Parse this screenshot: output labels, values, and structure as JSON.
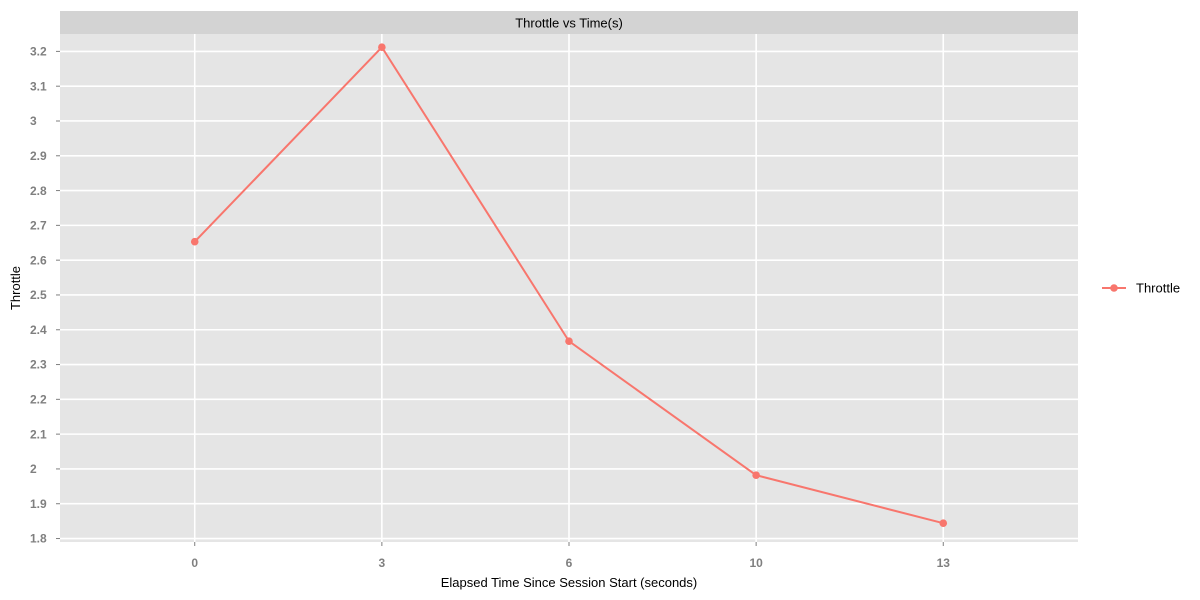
{
  "chart_data": {
    "type": "line",
    "title": "Throttle vs Time(s)",
    "xlabel": "Elapsed Time Since Session Start (seconds)",
    "ylabel": "Throttle",
    "x": [
      "0",
      "3",
      "6",
      "10",
      "13"
    ],
    "series": [
      {
        "name": "Throttle",
        "color": "#F8766D",
        "values": [
          2.653,
          3.212,
          2.367,
          1.982,
          1.844
        ]
      }
    ],
    "ylim": [
      1.79,
      3.25
    ],
    "yticks": [
      "1.8",
      "1.9",
      "2",
      "2.1",
      "2.2",
      "2.3",
      "2.4",
      "2.5",
      "2.6",
      "2.7",
      "2.8",
      "2.9",
      "3",
      "3.1",
      "3.2"
    ],
    "grid": true,
    "legend_position": "right",
    "panel_color": "#E5E5E5",
    "strip_color": "#D3D3D3"
  }
}
